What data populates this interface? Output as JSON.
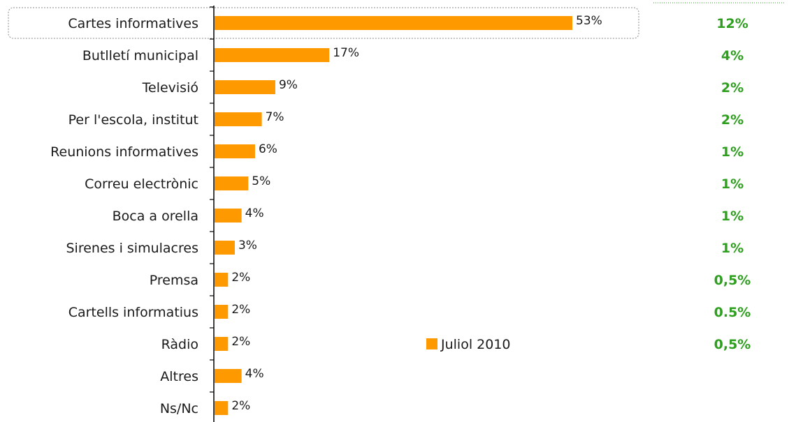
{
  "chart_data": {
    "type": "bar",
    "orientation": "horizontal",
    "categories": [
      "Cartes informatives",
      "Butlletí municipal",
      "Televisió",
      "Per l'escola, institut",
      "Reunions informatives",
      "Correu electrònic",
      "Boca a orella",
      "Sirenes i simulacres",
      "Premsa",
      "Cartells informatius",
      "Ràdio",
      "Altres",
      "Ns/Nc"
    ],
    "series": [
      {
        "name": "Juliol 2010",
        "values": [
          53,
          17,
          9,
          7,
          6,
          5,
          4,
          3,
          2,
          2,
          2,
          4,
          2
        ],
        "value_labels": [
          "53%",
          "17%",
          "9%",
          "7%",
          "6%",
          "5%",
          "4%",
          "3%",
          "2%",
          "2%",
          "2%",
          "4%",
          "2%"
        ],
        "color": "#FF9900"
      }
    ],
    "secondary_labels": [
      "12%",
      "4%",
      "2%",
      "2%",
      "1%",
      "1%",
      "1%",
      "1%",
      "0,5%",
      "0.5%",
      "0,5%",
      "",
      ""
    ],
    "secondary_color": "#2E9E1F",
    "highlighted_category": "Cartes informatives",
    "xlim": [
      0,
      60
    ],
    "legend_position": "bottom-center",
    "grid": false
  }
}
